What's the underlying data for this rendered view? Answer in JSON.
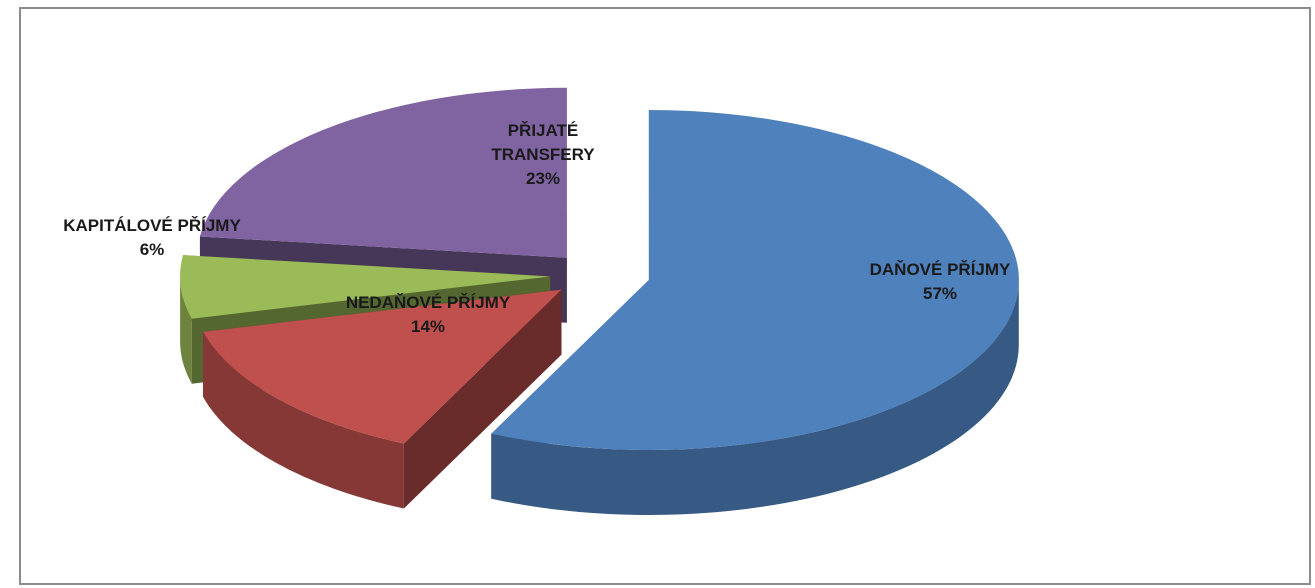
{
  "chart_data": {
    "type": "pie",
    "categories": [
      "DAŇOVÉ PŘÍJMY",
      "NEDAŇOVÉ PŘÍJMY",
      "KAPITÁLOVÉ PŘÍJMY",
      "PŘIJATÉ TRANSFERY"
    ],
    "values": [
      57,
      14,
      6,
      23
    ],
    "value_labels": [
      "57%",
      "14%",
      "6%",
      "23%"
    ],
    "colors": [
      "#4f81bd",
      "#c0504d",
      "#9bbb59",
      "#8064a2"
    ]
  }
}
